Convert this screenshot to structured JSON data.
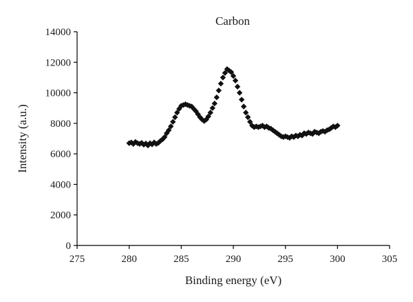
{
  "chart_data": {
    "type": "scatter",
    "title": "Carbon",
    "xlabel": "Binding energy (eV)",
    "ylabel": "Intensity (a.u.)",
    "xlim": [
      275,
      305
    ],
    "ylim": [
      0,
      14000
    ],
    "xticks": [
      275,
      280,
      285,
      290,
      295,
      300,
      305
    ],
    "yticks": [
      0,
      2000,
      4000,
      6000,
      8000,
      10000,
      12000,
      14000
    ],
    "grid": false,
    "legend": "none",
    "marker": "diamond",
    "marker_color": "#111111",
    "series": [
      {
        "x": [
          280.0,
          280.2,
          280.4,
          280.6,
          280.8,
          281.0,
          281.2,
          281.4,
          281.6,
          281.8,
          282.0,
          282.2,
          282.4,
          282.6,
          282.8,
          283.0,
          283.2,
          283.4,
          283.6,
          283.8,
          284.0,
          284.2,
          284.4,
          284.6,
          284.8,
          285.0,
          285.2,
          285.4,
          285.6,
          285.8,
          286.0,
          286.2,
          286.4,
          286.6,
          286.8,
          287.0,
          287.2,
          287.4,
          287.6,
          287.8,
          288.0,
          288.2,
          288.4,
          288.6,
          288.8,
          289.0,
          289.2,
          289.4,
          289.6,
          289.8,
          290.0,
          290.2,
          290.4,
          290.6,
          290.8,
          291.0,
          291.2,
          291.4,
          291.6,
          291.8,
          292.0,
          292.2,
          292.4,
          292.6,
          292.8,
          293.0,
          293.2,
          293.4,
          293.6,
          293.8,
          294.0,
          294.2,
          294.4,
          294.6,
          294.8,
          295.0,
          295.2,
          295.4,
          295.6,
          295.8,
          296.0,
          296.2,
          296.4,
          296.6,
          296.8,
          297.0,
          297.2,
          297.4,
          297.6,
          297.8,
          298.0,
          298.2,
          298.4,
          298.6,
          298.8,
          299.0,
          299.2,
          299.4,
          299.6,
          299.8,
          300.0
        ],
        "y": [
          6700,
          6750,
          6650,
          6780,
          6700,
          6650,
          6720,
          6600,
          6680,
          6550,
          6700,
          6620,
          6750,
          6650,
          6720,
          6850,
          6950,
          7100,
          7350,
          7550,
          7800,
          8100,
          8400,
          8700,
          8950,
          9150,
          9200,
          9250,
          9200,
          9150,
          9100,
          8950,
          8800,
          8600,
          8400,
          8250,
          8150,
          8250,
          8450,
          8700,
          9000,
          9300,
          9700,
          10150,
          10600,
          11000,
          11300,
          11550,
          11450,
          11350,
          11100,
          10800,
          10400,
          10000,
          9550,
          9100,
          8700,
          8400,
          8100,
          7850,
          7750,
          7800,
          7750,
          7800,
          7850,
          7750,
          7800,
          7700,
          7650,
          7550,
          7450,
          7350,
          7250,
          7150,
          7100,
          7150,
          7100,
          7050,
          7150,
          7100,
          7200,
          7150,
          7250,
          7200,
          7350,
          7300,
          7400,
          7350,
          7300,
          7450,
          7400,
          7350,
          7450,
          7500,
          7450,
          7550,
          7600,
          7700,
          7800,
          7750,
          7850
        ]
      }
    ]
  }
}
